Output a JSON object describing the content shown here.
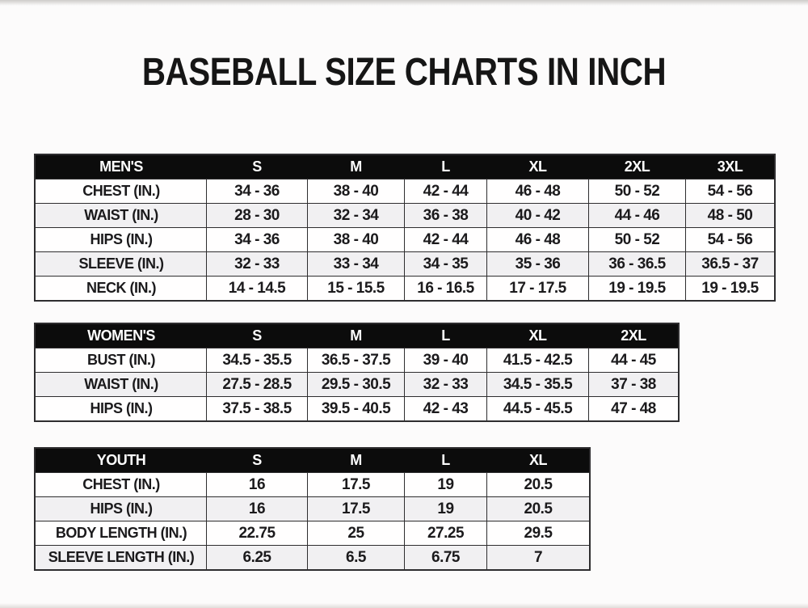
{
  "title": "BASEBALL SIZE CHARTS IN INCH",
  "colors": {
    "header_bg": "#0c0c0c",
    "header_text": "#ffffff",
    "alt_row_bg": "#f1f0f2",
    "border": "#2e2d2f",
    "page_bg": "#fcfbfb",
    "text": "#1b1a1c"
  },
  "tables": [
    {
      "name": "mens",
      "header": [
        "MEN'S",
        "S",
        "M",
        "L",
        "XL",
        "2XL",
        "3XL"
      ],
      "rows": [
        [
          "CHEST (IN.)",
          "34 - 36",
          "38 - 40",
          "42 - 44",
          "46 - 48",
          "50 - 52",
          "54 - 56"
        ],
        [
          "WAIST (IN.)",
          "28 - 30",
          "32 - 34",
          "36 - 38",
          "40 - 42",
          "44 - 46",
          "48 - 50"
        ],
        [
          "HIPS (IN.)",
          "34 - 36",
          "38 - 40",
          "42 - 44",
          "46 - 48",
          "50 - 52",
          "54 - 56"
        ],
        [
          "SLEEVE (IN.)",
          "32 - 33",
          "33 - 34",
          "34 - 35",
          "35 - 36",
          "36 - 36.5",
          "36.5 - 37"
        ],
        [
          "NECK (IN.)",
          "14 - 14.5",
          "15 - 15.5",
          "16 - 16.5",
          "17 - 17.5",
          "19 - 19.5",
          "19 - 19.5"
        ]
      ]
    },
    {
      "name": "womens",
      "header": [
        "WOMEN'S",
        "S",
        "M",
        "L",
        "XL",
        "2XL"
      ],
      "rows": [
        [
          "BUST (IN.)",
          "34.5 - 35.5",
          "36.5 - 37.5",
          "39 - 40",
          "41.5 - 42.5",
          "44 - 45"
        ],
        [
          "WAIST (IN.)",
          "27.5 - 28.5",
          "29.5 - 30.5",
          "32 - 33",
          "34.5 - 35.5",
          "37 - 38"
        ],
        [
          "HIPS (IN.)",
          "37.5 - 38.5",
          "39.5 - 40.5",
          "42 - 43",
          "44.5 - 45.5",
          "47 - 48"
        ]
      ]
    },
    {
      "name": "youth",
      "header": [
        "YOUTH",
        "S",
        "M",
        "L",
        "XL"
      ],
      "rows": [
        [
          "CHEST (IN.)",
          "16",
          "17.5",
          "19",
          "20.5"
        ],
        [
          "HIPS (IN.)",
          "16",
          "17.5",
          "19",
          "20.5"
        ],
        [
          "BODY LENGTH (IN.)",
          "22.75",
          "25",
          "27.25",
          "29.5"
        ],
        [
          "SLEEVE LENGTH (IN.)",
          "6.25",
          "6.5",
          "6.75",
          "7"
        ]
      ]
    }
  ]
}
